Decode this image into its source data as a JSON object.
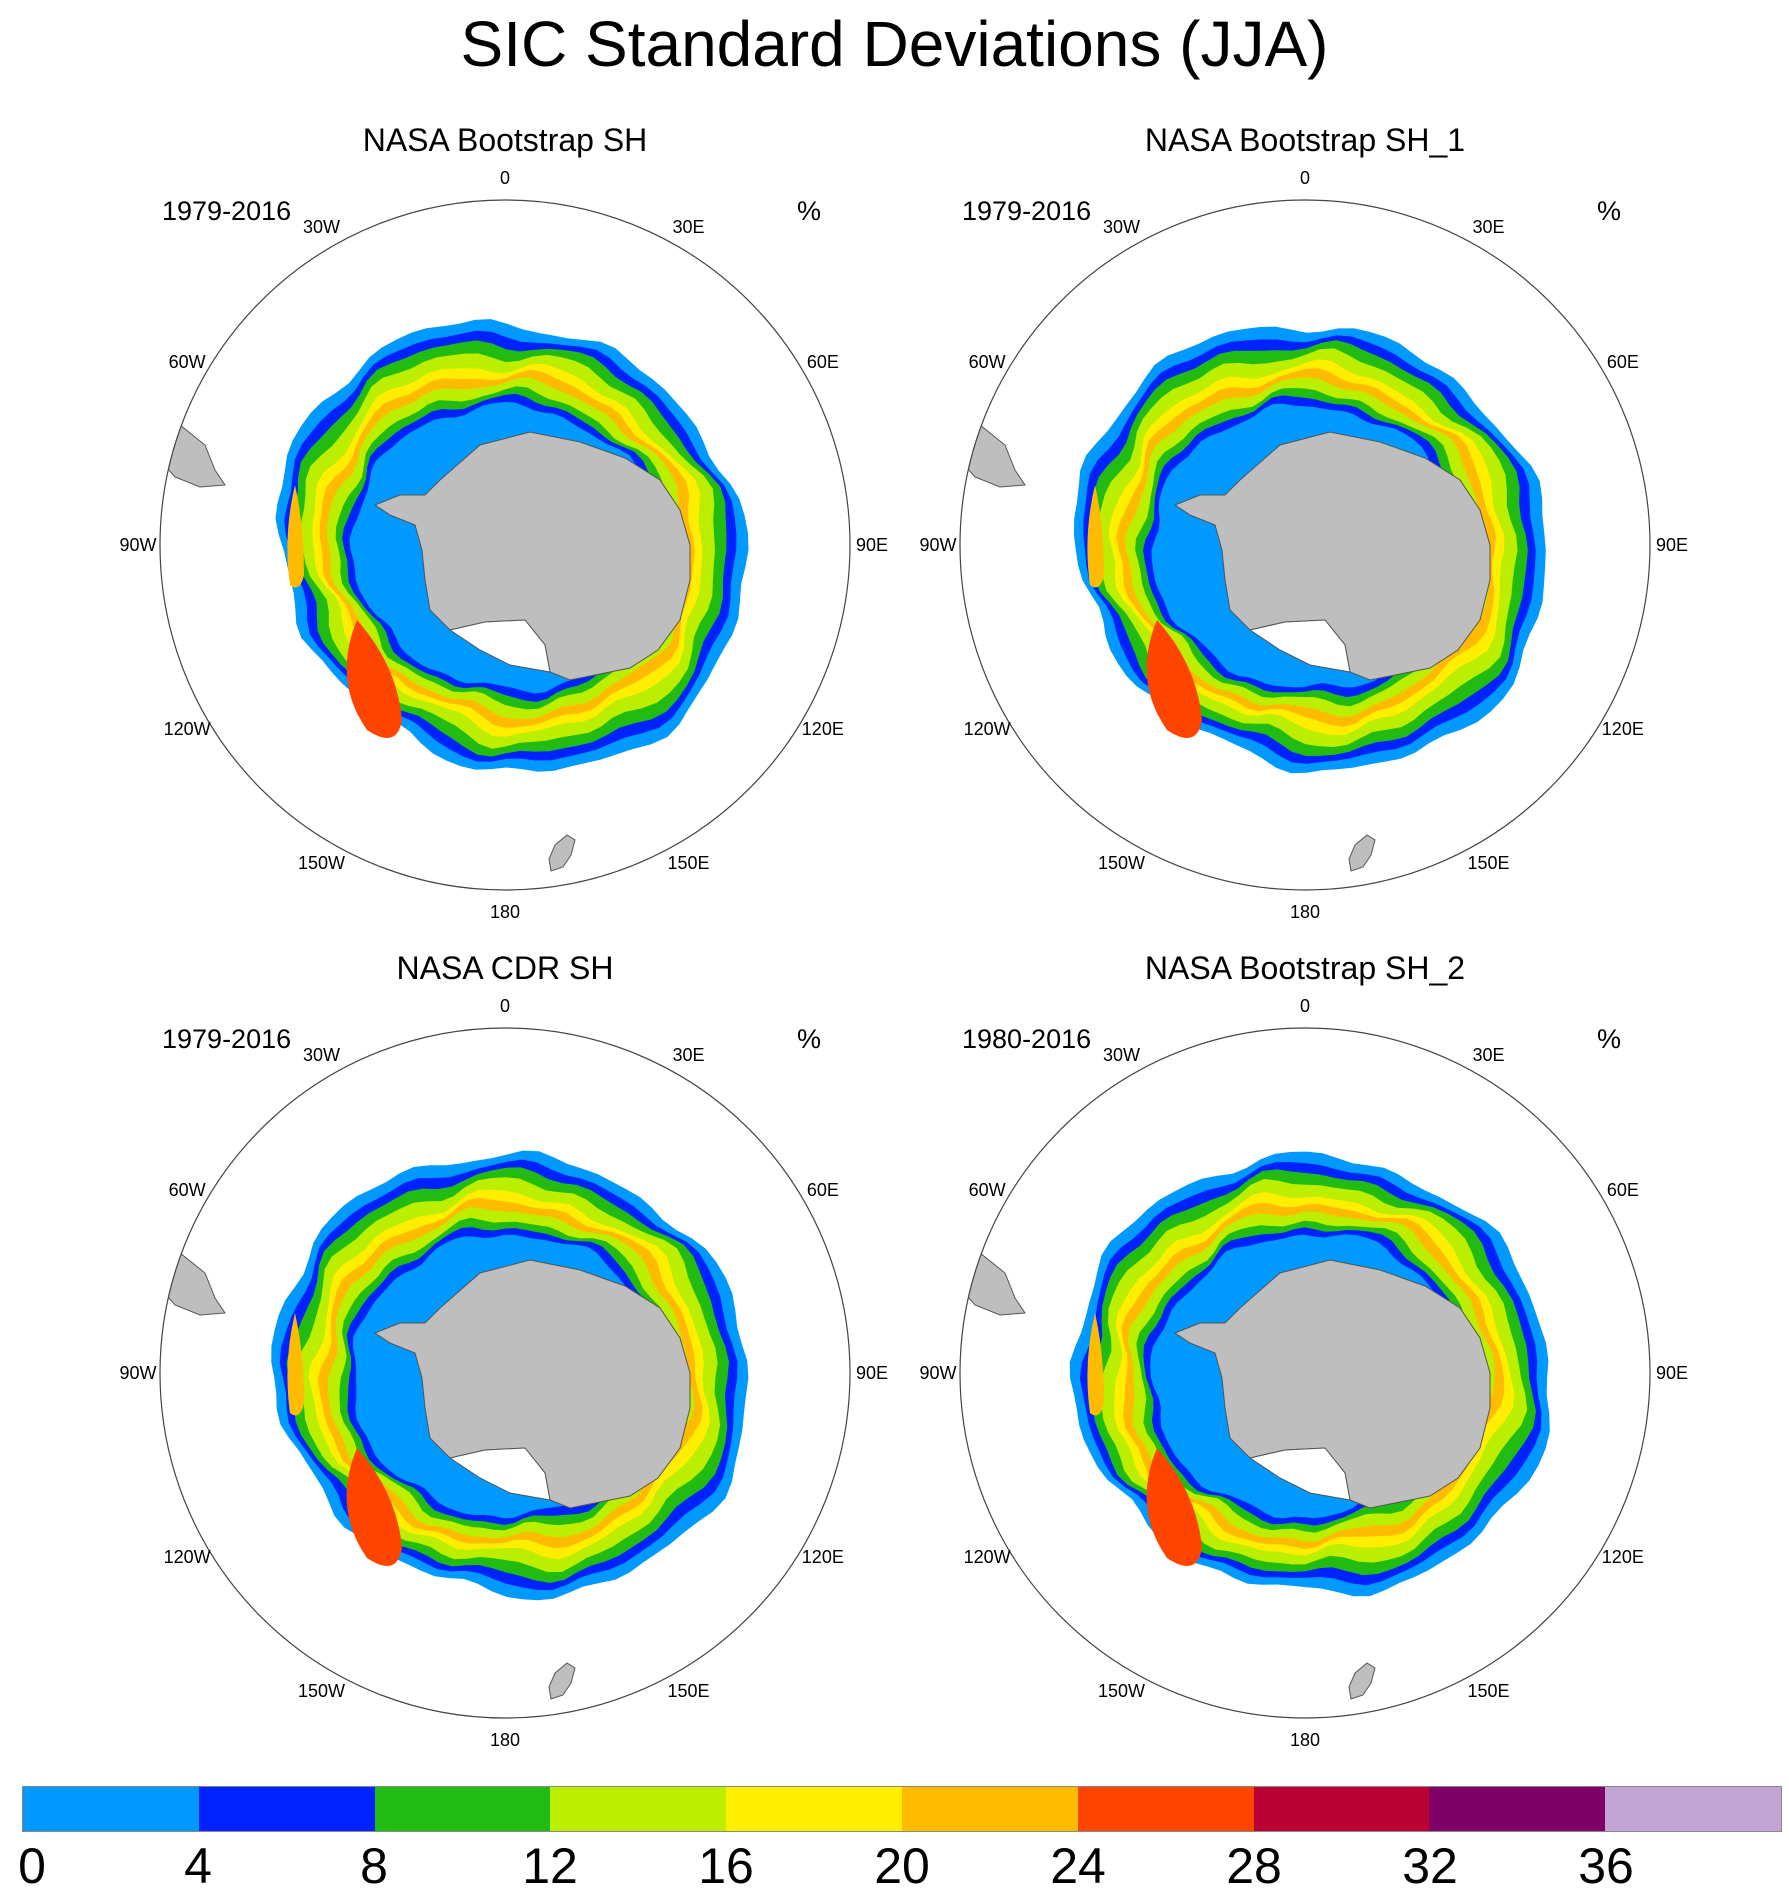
{
  "title": "SIC Standard Deviations (JJA)",
  "units": "%",
  "longitude_labels": [
    "0",
    "30E",
    "60E",
    "90E",
    "120E",
    "150E",
    "180",
    "150W",
    "120W",
    "90W",
    "60W",
    "30W"
  ],
  "panels": [
    {
      "title": "NASA Bootstrap SH",
      "years": "1979-2016"
    },
    {
      "title": "NASA Bootstrap SH_1",
      "years": "1979-2016"
    },
    {
      "title": "NASA CDR SH",
      "years": "1979-2016"
    },
    {
      "title": "NASA Bootstrap SH_2",
      "years": "1980-2016"
    }
  ],
  "colorbar": {
    "tick_labels": [
      "0",
      "4",
      "8",
      "12",
      "16",
      "20",
      "24",
      "28",
      "32",
      "36"
    ],
    "colors": [
      "#0099ff",
      "#0022ff",
      "#22bb11",
      "#bbee00",
      "#ffee00",
      "#ffbb00",
      "#ff4400",
      "#bb0033",
      "#7f0066",
      "#c3a5d5"
    ]
  },
  "chart_data": {
    "type": "map",
    "projection": "south polar stereographic",
    "variable": "SIC standard deviation",
    "season": "JJA",
    "contour_levels": [
      0,
      4,
      8,
      12,
      16,
      20,
      24,
      28,
      32,
      36
    ],
    "land_color": "#bebebe"
  }
}
